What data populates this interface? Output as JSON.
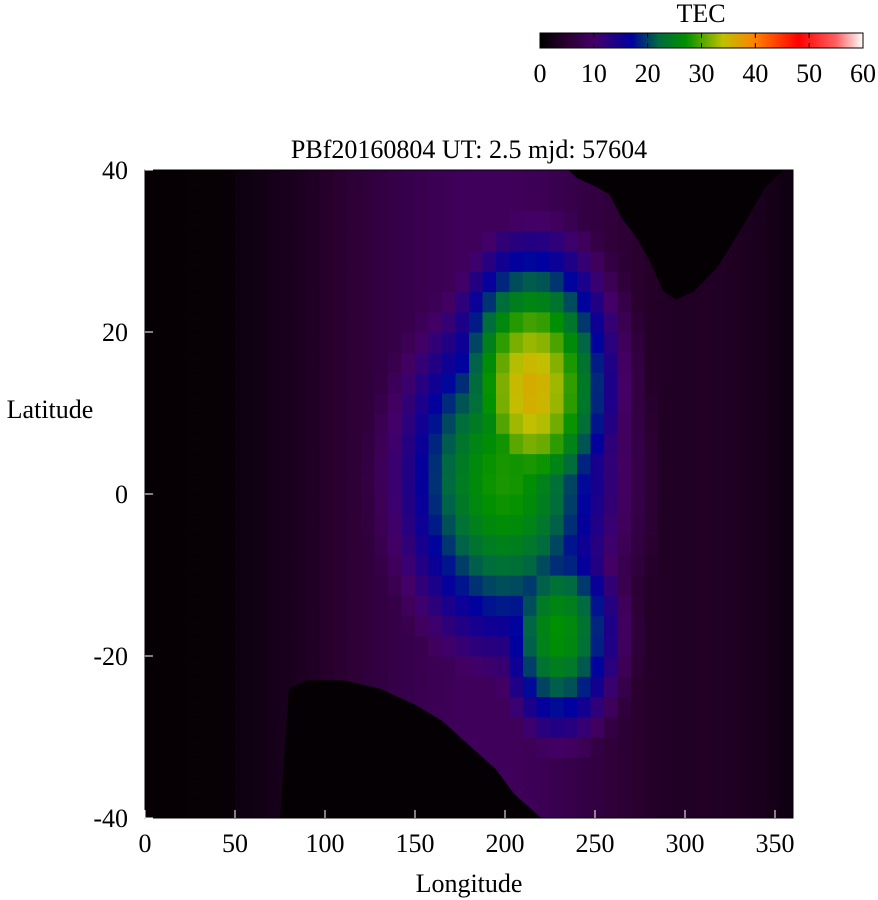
{
  "chart_data": {
    "type": "heatmap",
    "title": "PBf20160804  UT: 2.5  mjd: 57604",
    "xlabel": "Longitude",
    "ylabel": "Latitude",
    "xlim": [
      0,
      360
    ],
    "ylim": [
      -40,
      40
    ],
    "x_ticks": [
      0,
      50,
      100,
      150,
      200,
      250,
      300,
      350
    ],
    "y_ticks": [
      -40,
      -20,
      0,
      20,
      40
    ],
    "colorbar": {
      "label": "TEC",
      "range": [
        0,
        60
      ],
      "ticks": [
        0,
        10,
        20,
        30,
        40,
        50,
        60
      ],
      "stops": [
        {
          "value": 0,
          "color": "#000000"
        },
        {
          "value": 5,
          "color": "#2a0030"
        },
        {
          "value": 10,
          "color": "#440066"
        },
        {
          "value": 17,
          "color": "#0000a0"
        },
        {
          "value": 22,
          "color": "#006a40"
        },
        {
          "value": 27,
          "color": "#009000"
        },
        {
          "value": 34,
          "color": "#c0c000"
        },
        {
          "value": 40,
          "color": "#ff8000"
        },
        {
          "value": 48,
          "color": "#ff0000"
        },
        {
          "value": 55,
          "color": "#ff6060"
        },
        {
          "value": 60,
          "color": "#ffffff"
        }
      ]
    },
    "blobs": [
      {
        "lon": 215,
        "lat": 13,
        "peak": 36,
        "sigma_lon": 32,
        "sigma_lat": 13
      },
      {
        "lon": 200,
        "lat": 2,
        "peak": 28,
        "sigma_lon": 45,
        "sigma_lat": 17
      },
      {
        "lon": 230,
        "lat": -17,
        "peak": 27,
        "sigma_lon": 25,
        "sigma_lat": 10
      }
    ],
    "no_data_regions": [
      {
        "name": "northeast",
        "boundary": [
          [
            235,
            40
          ],
          [
            240,
            39
          ],
          [
            250,
            38
          ],
          [
            258,
            37
          ],
          [
            265,
            34
          ],
          [
            272,
            32
          ],
          [
            280,
            29
          ],
          [
            288,
            25
          ],
          [
            295,
            24
          ],
          [
            305,
            25
          ],
          [
            318,
            28
          ],
          [
            332,
            33
          ],
          [
            345,
            38
          ],
          [
            355,
            40
          ]
        ]
      },
      {
        "name": "southwest",
        "boundary": [
          [
            75,
            -40
          ],
          [
            80,
            -24
          ],
          [
            90,
            -23
          ],
          [
            110,
            -23
          ],
          [
            130,
            -24
          ],
          [
            150,
            -26
          ],
          [
            165,
            -28
          ],
          [
            180,
            -31
          ],
          [
            195,
            -34
          ],
          [
            205,
            -37
          ],
          [
            215,
            -39
          ],
          [
            220,
            -40
          ]
        ]
      }
    ]
  }
}
